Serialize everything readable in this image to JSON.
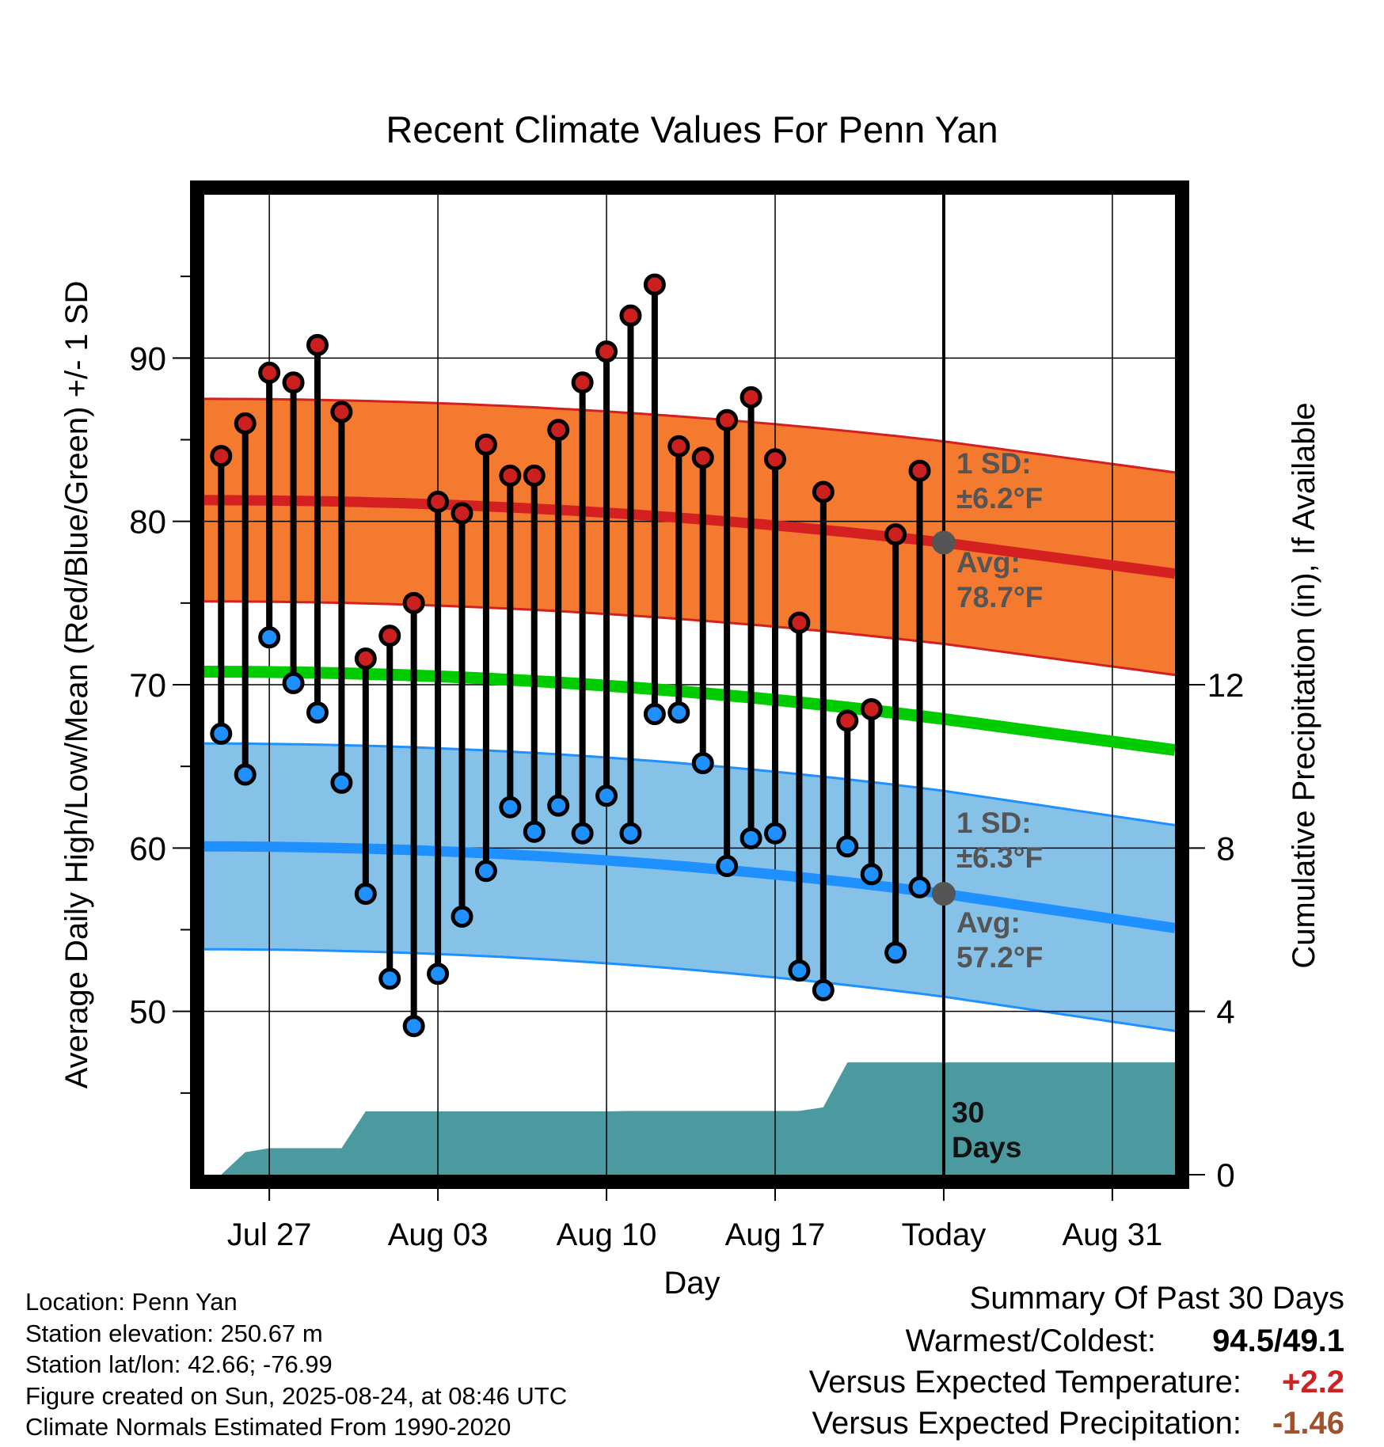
{
  "chart_data": {
    "type": "line",
    "title": "Recent Climate Values For Penn Yan",
    "xlabel": "Day",
    "ylabel": "Average Daily High/Low/Mean (Red/Blue/Green) +/- 1 SD",
    "y2label": "Cumulative Precipitation (in), If Available",
    "ylim": [
      40,
      100
    ],
    "y2lim": [
      0,
      24
    ],
    "y_ticks": [
      50,
      60,
      70,
      80,
      90
    ],
    "y2_ticks": [
      0,
      4,
      8,
      12
    ],
    "x_ticks": [
      {
        "day": 0,
        "label": "Jul 27"
      },
      {
        "day": 7,
        "label": "Aug 03"
      },
      {
        "day": 14,
        "label": "Aug 10"
      },
      {
        "day": 21,
        "label": "Aug 17"
      },
      {
        "day": 28,
        "label": "Today"
      },
      {
        "day": 35,
        "label": "Aug 31"
      }
    ],
    "x_range": [
      -2.7,
      37.6
    ],
    "grid": true,
    "daily_high": [
      84.0,
      86.0,
      89.1,
      88.5,
      90.8,
      86.7,
      71.6,
      73.0,
      75.0,
      81.2,
      80.5,
      84.7,
      82.8,
      82.8,
      85.6,
      88.5,
      90.4,
      92.6,
      94.5,
      84.6,
      83.9,
      86.2,
      87.6,
      83.8,
      73.8,
      81.8,
      67.8,
      68.5,
      79.2,
      83.1
    ],
    "daily_low": [
      67.0,
      64.5,
      72.9,
      70.1,
      68.3,
      64.0,
      57.2,
      52.0,
      49.1,
      52.3,
      55.8,
      58.6,
      62.5,
      61.0,
      62.6,
      60.9,
      63.2,
      60.9,
      68.2,
      68.3,
      65.2,
      58.9,
      60.6,
      60.9,
      52.5,
      51.3,
      60.1,
      58.4,
      53.6,
      57.6
    ],
    "normal_high": {
      "start": 81.3,
      "today": 78.7,
      "end": 76.8
    },
    "normal_high_sd": 6.2,
    "normal_low": {
      "start": 60.1,
      "today": 57.2,
      "end": 55.1
    },
    "normal_low_sd": 6.3,
    "normal_mean": {
      "start": 70.8,
      "today": 67.9,
      "end": 66.0
    },
    "cumulative_precip": [
      0.0,
      0.55,
      0.65,
      0.65,
      0.65,
      0.65,
      1.55,
      1.55,
      1.55,
      1.55,
      1.55,
      1.55,
      1.55,
      1.55,
      1.55,
      1.55,
      1.55,
      1.56,
      1.56,
      1.56,
      1.56,
      1.56,
      1.56,
      1.56,
      1.56,
      1.65,
      2.75,
      2.75,
      2.75,
      2.75
    ],
    "precip_final": 2.75,
    "annotations": {
      "high_sd": "1 SD:",
      "high_sd_value": "±6.2°F",
      "high_avg": "Avg:",
      "high_avg_value": "78.7°F",
      "low_sd": "1 SD:",
      "low_sd_value": "±6.3°F",
      "low_avg": "Avg:",
      "low_avg_value": "57.2°F",
      "days_num": "30",
      "days_word": "Days"
    },
    "colors": {
      "high_band": "#f47a30",
      "high_line": "#d42020",
      "low_band": "#86c1e8",
      "low_line": "#1e90ff",
      "mean_line": "#00cc00",
      "precip": "#4a9aa0",
      "high_dot": "#cc1f1f",
      "low_dot": "#1e90ff",
      "today_dot": "#555555",
      "annotation_text": "#555555"
    }
  },
  "footer": {
    "location": "Location: Penn Yan",
    "elevation": "Station elevation: 250.67 m",
    "latlon": "Station lat/lon: 42.66; -76.99",
    "created": "Figure created on Sun, 2025-08-24, at 08:46 UTC",
    "normals": "Climate Normals Estimated From 1990-2020"
  },
  "summary": {
    "title": "Summary Of Past 30 Days",
    "warm_cold_label": "Warmest/Coldest:",
    "warm_cold_value": "94.5/49.1",
    "temp_label": "Versus Expected Temperature:",
    "temp_value": "+2.2",
    "temp_color": "#cc2222",
    "precip_label": "Versus Expected Precipitation:",
    "precip_value": "-1.46",
    "precip_color": "#a0522d"
  }
}
